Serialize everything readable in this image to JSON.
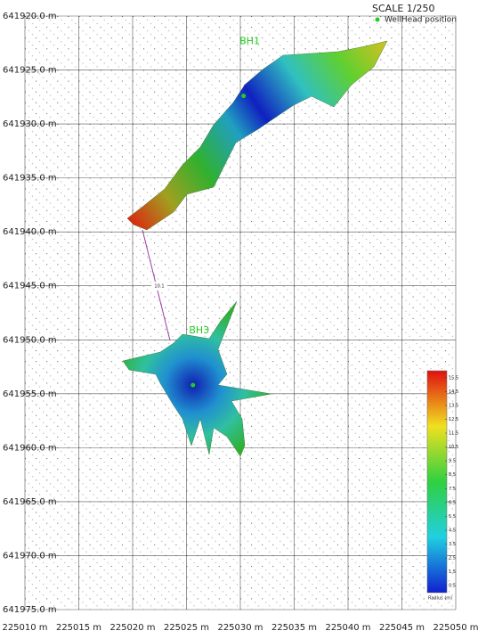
{
  "chart_data": {
    "type": "scatter",
    "title": "SCALE 1/250",
    "series": [
      {
        "name": "WellHead position",
        "color": "#22cc22",
        "x": [
          225030.3,
          225025.6
        ],
        "values": [
          641927.4,
          641954.2
        ]
      }
    ],
    "point_labels": [
      "BH1",
      "BH3"
    ],
    "annotations": [
      "10.1"
    ],
    "xlim": [
      225010,
      225050
    ],
    "xticks": [
      {
        "value": 225010,
        "label": "225010 m"
      },
      {
        "value": 225015,
        "label": "225015 m"
      },
      {
        "value": 225020,
        "label": "225020 m"
      },
      {
        "value": 225025,
        "label": "225025 m"
      },
      {
        "value": 225030,
        "label": "225030 m"
      },
      {
        "value": 225035,
        "label": "225035 m"
      },
      {
        "value": 225040,
        "label": "225040 m"
      },
      {
        "value": 225045,
        "label": "225045 m"
      },
      {
        "value": 225050,
        "label": "225050 m"
      }
    ],
    "ylim": [
      641920,
      641975
    ],
    "yticks": [
      {
        "value": 641920,
        "label": "641920.0 m"
      },
      {
        "value": 641925,
        "label": "641925.0 m"
      },
      {
        "value": 641930,
        "label": "641930.0 m"
      },
      {
        "value": 641935,
        "label": "641935.0 m"
      },
      {
        "value": 641940,
        "label": "641940.0 m"
      },
      {
        "value": 641945,
        "label": "641945.0 m"
      },
      {
        "value": 641950,
        "label": "641950.0 m"
      },
      {
        "value": 641955,
        "label": "641955.0 m"
      },
      {
        "value": 641960,
        "label": "641960.0 m"
      },
      {
        "value": 641965,
        "label": "641965.0 m"
      },
      {
        "value": 641970,
        "label": "641970.0 m"
      },
      {
        "value": 641975,
        "label": "641975.0 m"
      }
    ],
    "grid": true,
    "colorbar": {
      "label": "Radius (m)",
      "lim": [
        0,
        16
      ],
      "ticks": [
        0.5,
        1.5,
        2.5,
        3.5,
        4.5,
        5.5,
        6.5,
        7.5,
        8.5,
        9.5,
        10.5,
        11.5,
        12.5,
        13.5,
        14.5,
        15.5
      ]
    }
  }
}
